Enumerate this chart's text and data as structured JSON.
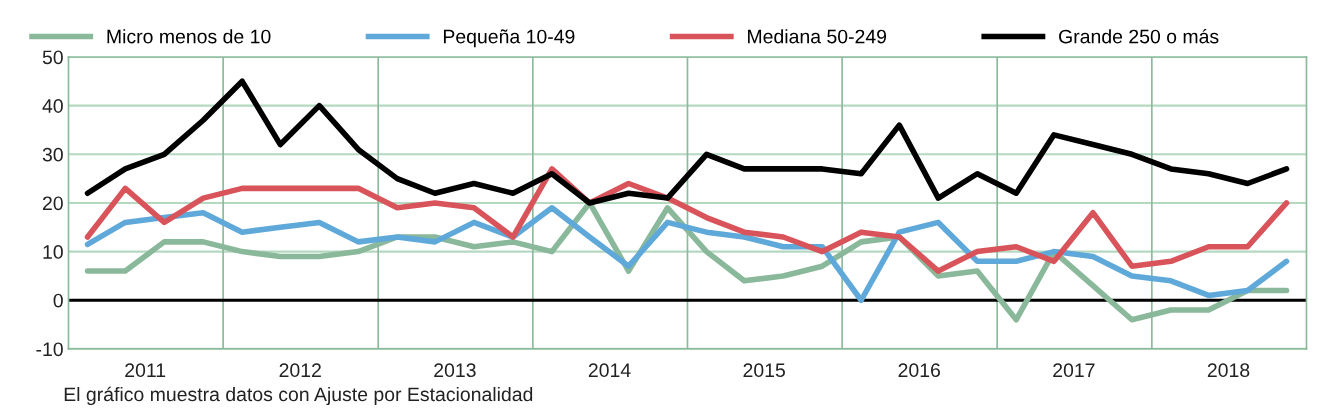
{
  "chart_data": {
    "type": "line",
    "x": [
      "2011-02-15",
      "2011-05-15",
      "2011-08-15",
      "2011-11-15",
      "2012-02-15",
      "2012-05-15",
      "2012-08-15",
      "2012-11-15",
      "2013-02-15",
      "2013-05-15",
      "2013-08-15",
      "2013-11-15",
      "2014-02-15",
      "2014-05-15",
      "2014-08-15",
      "2014-11-15",
      "2015-02-15",
      "2015-05-15",
      "2015-08-15",
      "2015-11-15",
      "2016-02-15",
      "2016-05-15",
      "2016-08-15",
      "2016-11-15",
      "2017-02-15",
      "2017-05-15",
      "2017-08-15",
      "2017-11-15",
      "2018-02-15",
      "2018-05-15",
      "2018-08-15",
      "2018-11-15"
    ],
    "series": [
      {
        "name": "Micro menos de 10",
        "color": "#8ab89a",
        "values": [
          6,
          6,
          12,
          12,
          10,
          9,
          9,
          10,
          13,
          13,
          11,
          12,
          10,
          20,
          6,
          19,
          10,
          4,
          5,
          7,
          12,
          13,
          5,
          6,
          -4,
          10,
          3,
          -4,
          -2,
          -2,
          2,
          2
        ]
      },
      {
        "name": "Pequeña 10-49",
        "color": "#5fa8da",
        "values": [
          11.5,
          16,
          17,
          18,
          14,
          15,
          16,
          12,
          13,
          12,
          16,
          13,
          19,
          13,
          7,
          16,
          14,
          13,
          11,
          11,
          0,
          14,
          16,
          8,
          8,
          10,
          9,
          5,
          4,
          1,
          2,
          8
        ]
      },
      {
        "name": "Mediana 50-249",
        "color": "#d9545a",
        "values": [
          13,
          23,
          16,
          21,
          23,
          23,
          23,
          23,
          19,
          20,
          19,
          13,
          27,
          20,
          24,
          21,
          17,
          14,
          13,
          10,
          14,
          13,
          6,
          10,
          11,
          8,
          18,
          7,
          8,
          11,
          11,
          20
        ]
      },
      {
        "name": "Grande 250 o más",
        "color": "#000000",
        "values": [
          22,
          27,
          30,
          37,
          45,
          32,
          40,
          31,
          25,
          22,
          24,
          22,
          26,
          20,
          22,
          21,
          30,
          27,
          27,
          27,
          26,
          36,
          21,
          26,
          22,
          34,
          32,
          30,
          27,
          26,
          24,
          27
        ]
      }
    ],
    "xlim": [
      "2011-01-01",
      "2019-01-01"
    ],
    "xticks": [
      {
        "value": "2011-07-01",
        "label": "2011"
      },
      {
        "value": "2012-07-01",
        "label": "2012"
      },
      {
        "value": "2013-07-01",
        "label": "2013"
      },
      {
        "value": "2014-07-01",
        "label": "2014"
      },
      {
        "value": "2015-07-01",
        "label": "2015"
      },
      {
        "value": "2016-07-01",
        "label": "2016"
      },
      {
        "value": "2017-07-01",
        "label": "2017"
      },
      {
        "value": "2018-07-01",
        "label": "2018"
      }
    ],
    "ylim": [
      -10,
      50
    ],
    "yticks": [
      -10,
      0,
      10,
      20,
      30,
      40,
      50
    ],
    "grid": "y",
    "ref_lines": [
      {
        "axis": "y",
        "value": 0,
        "color": "#000000"
      },
      {
        "axis": "x",
        "value": "2012-01-01",
        "color": "#8bbb9c"
      },
      {
        "axis": "x",
        "value": "2013-01-01",
        "color": "#8bbb9c"
      },
      {
        "axis": "x",
        "value": "2014-01-01",
        "color": "#8bbb9c"
      },
      {
        "axis": "x",
        "value": "2015-01-01",
        "color": "#8bbb9c"
      },
      {
        "axis": "x",
        "value": "2016-01-01",
        "color": "#8bbb9c"
      },
      {
        "axis": "x",
        "value": "2017-01-01",
        "color": "#8bbb9c"
      },
      {
        "axis": "x",
        "value": "2018-01-01",
        "color": "#8bbb9c"
      }
    ],
    "legend": "top",
    "marker": "none",
    "line_style": "solid",
    "annotations": [
      "El gráfico muestra datos con Ajuste por Estacionalidad"
    ]
  }
}
